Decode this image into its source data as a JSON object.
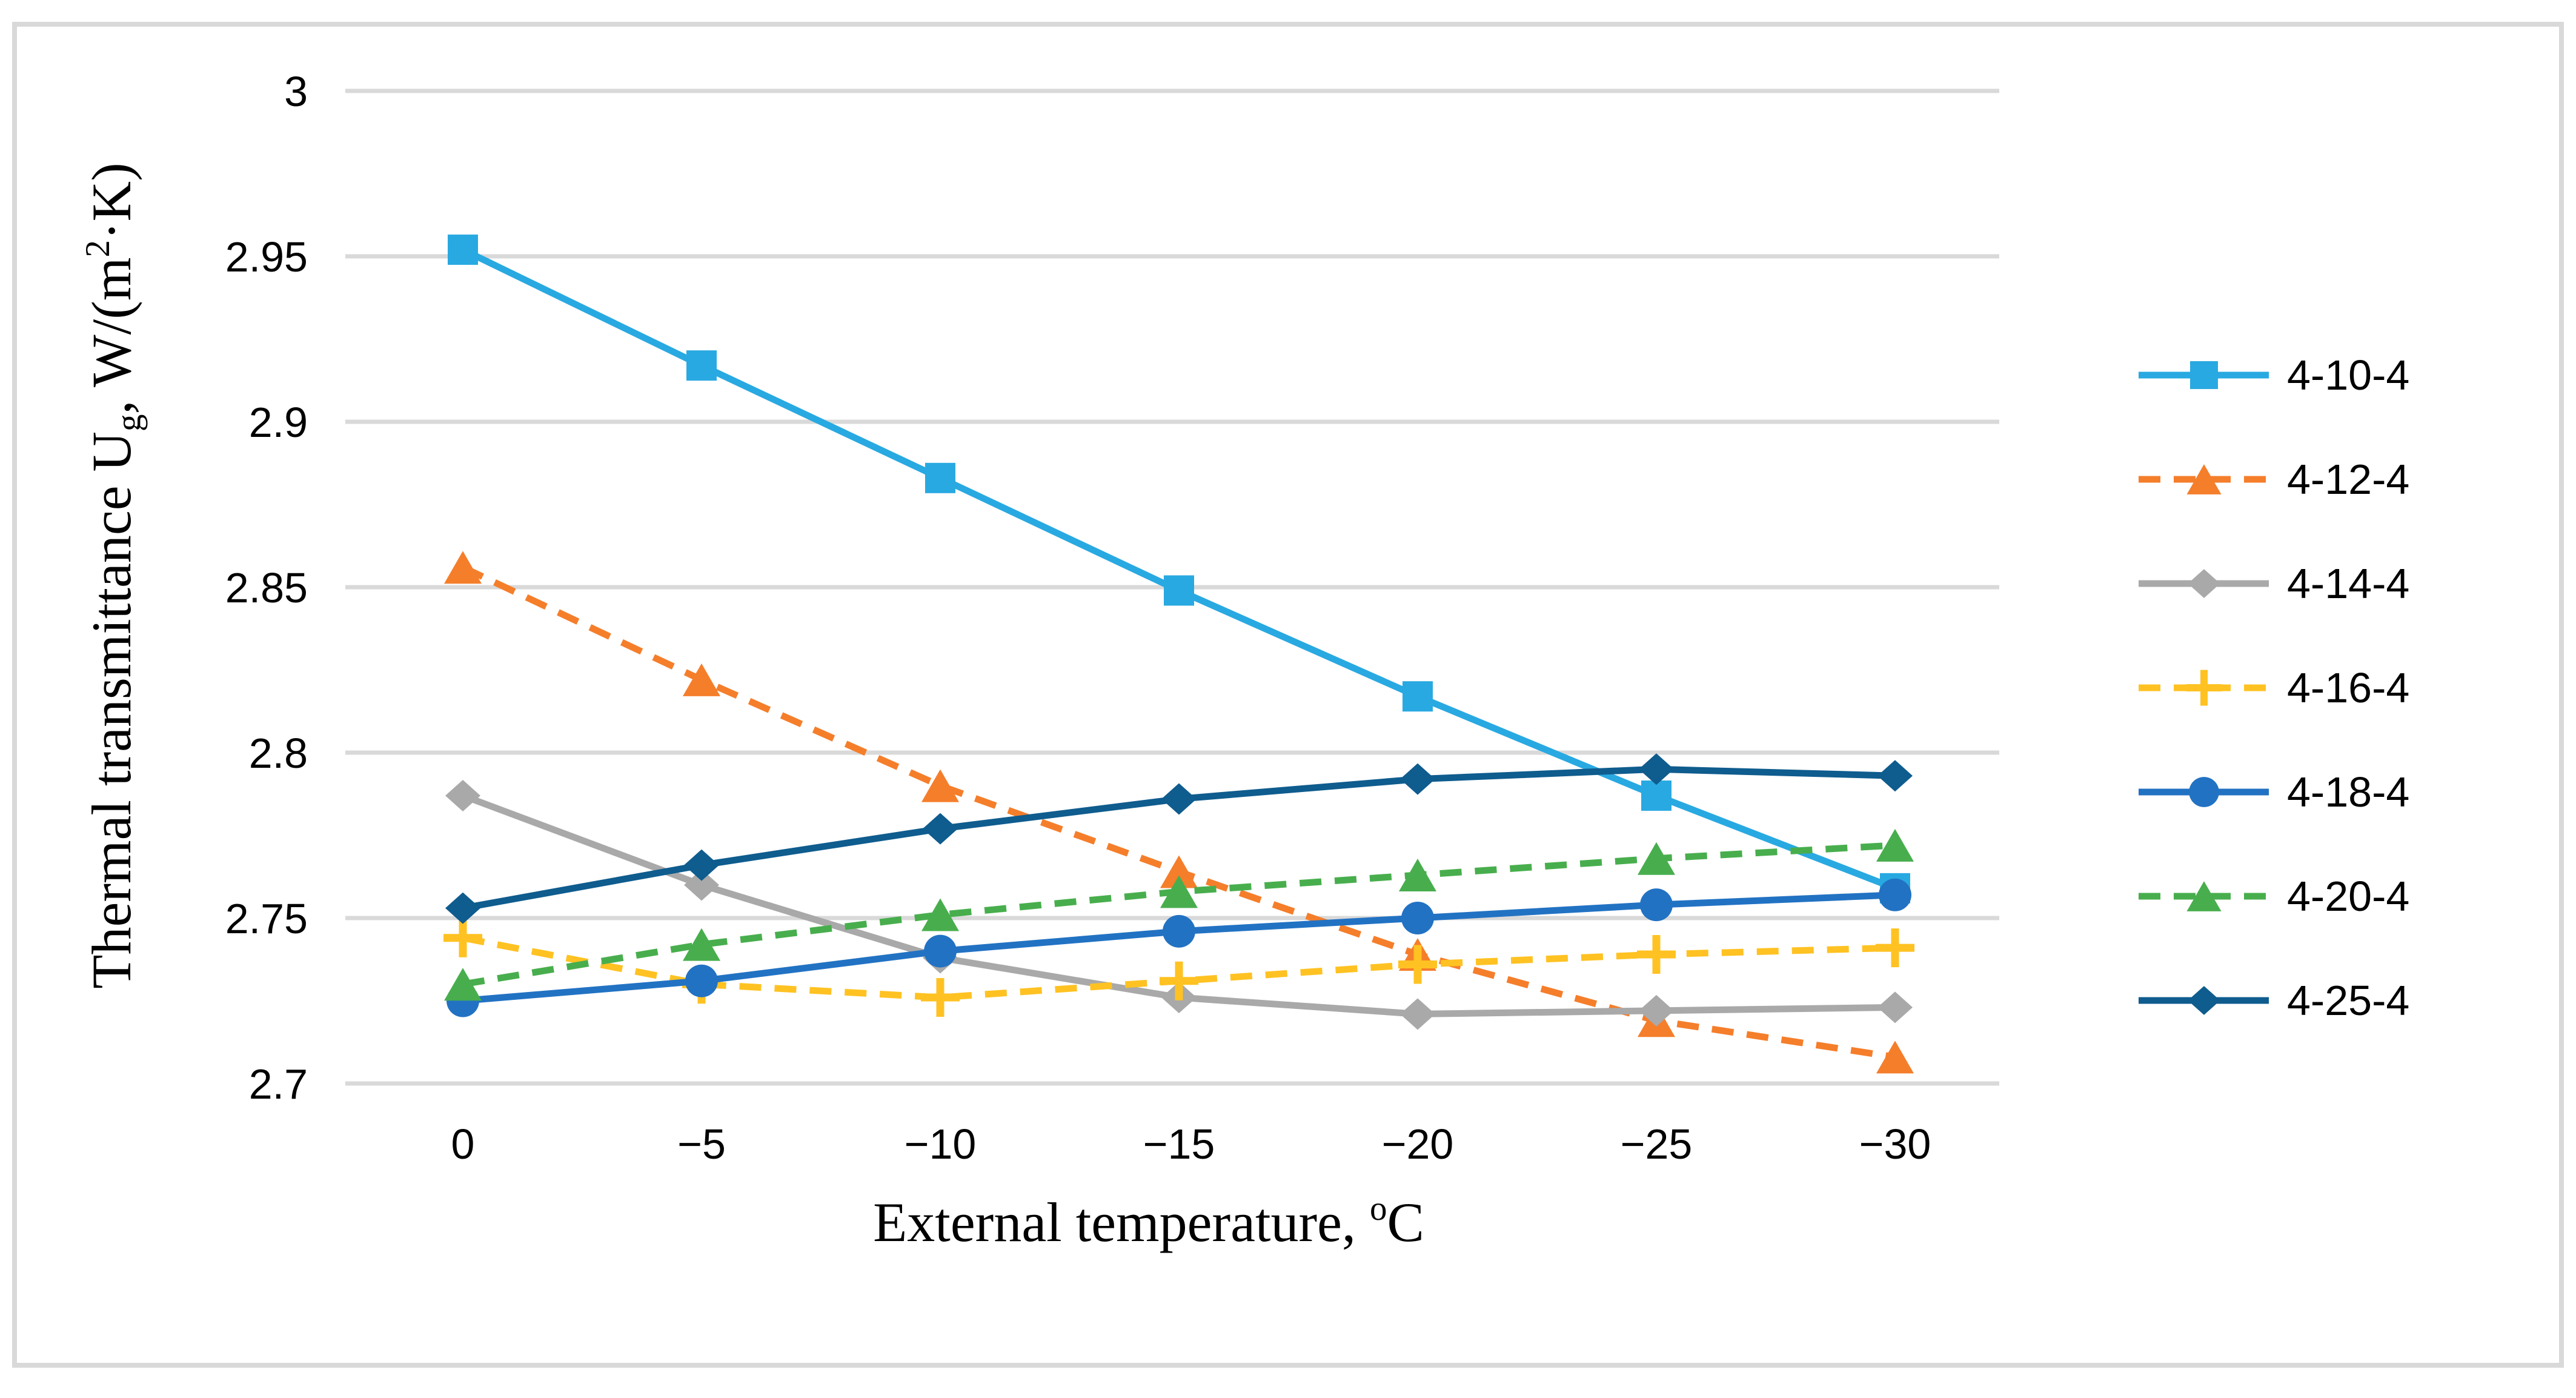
{
  "figure": {
    "background": "#FFFFFF",
    "border_color": "#D9D9D9",
    "text_color": "#000000",
    "gridline_color": "#D9D9D9"
  },
  "chart_data": {
    "type": "line",
    "title": "",
    "xlabel": "External temperature, °C",
    "ylabel": "Thermal transmittance Ug, W/(m²·K)",
    "xlabel_parts": [
      {
        "t": "External temperature, "
      },
      {
        "t": "o",
        "sup": true
      },
      {
        "t": "C"
      }
    ],
    "ylabel_parts": [
      {
        "t": "Thermal transmittance U"
      },
      {
        "t": "g",
        "sub": true
      },
      {
        "t": ", W/(m"
      },
      {
        "t": "2",
        "sup": true
      },
      {
        "t": "·K)"
      }
    ],
    "x": [
      0,
      -5,
      -10,
      -15,
      -20,
      -25,
      -30
    ],
    "xtick_labels": [
      "0",
      "−5",
      "−10",
      "−15",
      "−20",
      "−25",
      "−30"
    ],
    "yticks": [
      {
        "label": "3",
        "value": 3.0
      },
      {
        "label": "2.95",
        "value": 2.95
      },
      {
        "label": "2.9",
        "value": 2.9
      },
      {
        "label": "2.85",
        "value": 2.85
      },
      {
        "label": "2.8",
        "value": 2.8
      },
      {
        "label": "2.75",
        "value": 2.75
      },
      {
        "label": "2.7",
        "value": 2.7
      }
    ],
    "ylim": [
      2.7,
      3.0
    ],
    "grid": "horizontal",
    "legend_position": "right",
    "series": [
      {
        "name": "4-10-4",
        "color": "#29A9E1",
        "dash": "solid",
        "marker": "square",
        "values": [
          2.952,
          2.917,
          2.883,
          2.849,
          2.817,
          2.787,
          2.759
        ]
      },
      {
        "name": "4-12-4",
        "color": "#F57E2B",
        "dash": "dashed",
        "marker": "triangle",
        "values": [
          2.856,
          2.822,
          2.79,
          2.764,
          2.739,
          2.719,
          2.708
        ]
      },
      {
        "name": "4-14-4",
        "color": "#A9A9A9",
        "dash": "solid",
        "marker": "diamond",
        "values": [
          2.787,
          2.76,
          2.738,
          2.726,
          2.721,
          2.722,
          2.723
        ]
      },
      {
        "name": "4-16-4",
        "color": "#FFC222",
        "dash": "dashed",
        "marker": "plus",
        "values": [
          2.744,
          2.73,
          2.726,
          2.731,
          2.736,
          2.739,
          2.741
        ]
      },
      {
        "name": "4-18-4",
        "color": "#2272C3",
        "dash": "solid",
        "marker": "circle",
        "values": [
          2.725,
          2.731,
          2.74,
          2.746,
          2.75,
          2.754,
          2.757
        ]
      },
      {
        "name": "4-20-4",
        "color": "#48AE4D",
        "dash": "dashed",
        "marker": "triangle",
        "values": [
          2.73,
          2.742,
          2.751,
          2.758,
          2.763,
          2.768,
          2.772
        ]
      },
      {
        "name": "4-25-4",
        "color": "#0F5C8E",
        "dash": "solid",
        "marker": "diamond",
        "values": [
          2.753,
          2.766,
          2.777,
          2.786,
          2.792,
          2.795,
          2.793
        ]
      }
    ]
  }
}
